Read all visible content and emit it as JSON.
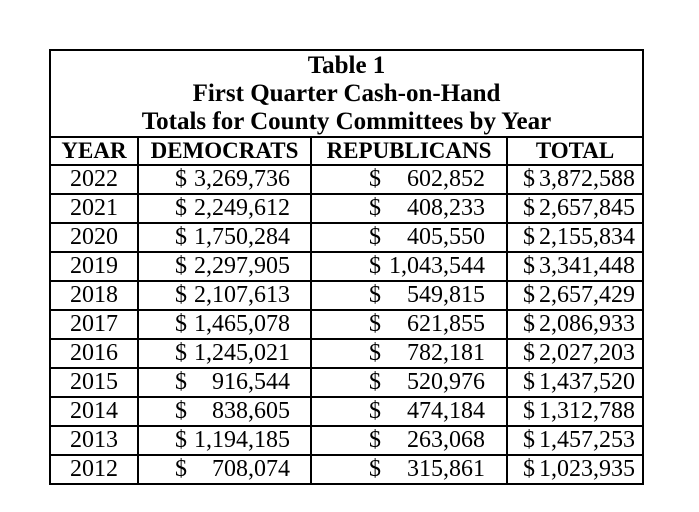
{
  "table": {
    "title_lines": [
      "Table 1",
      "First Quarter Cash-on-Hand",
      "Totals for County Committees by Year"
    ],
    "columns": [
      "YEAR",
      "DEMOCRATS",
      "REPUBLICANS",
      "TOTAL"
    ],
    "currency_symbol": "$",
    "rows": [
      {
        "year": "2022",
        "democrats": "3,269,736",
        "republicans": "602,852",
        "total": "3,872,588"
      },
      {
        "year": "2021",
        "democrats": "2,249,612",
        "republicans": "408,233",
        "total": "2,657,845"
      },
      {
        "year": "2020",
        "democrats": "1,750,284",
        "republicans": "405,550",
        "total": "2,155,834"
      },
      {
        "year": "2019",
        "democrats": "2,297,905",
        "republicans": "1,043,544",
        "total": "3,341,448"
      },
      {
        "year": "2018",
        "democrats": "2,107,613",
        "republicans": "549,815",
        "total": "2,657,429"
      },
      {
        "year": "2017",
        "democrats": "1,465,078",
        "republicans": "621,855",
        "total": "2,086,933"
      },
      {
        "year": "2016",
        "democrats": "1,245,021",
        "republicans": "782,181",
        "total": "2,027,203"
      },
      {
        "year": "2015",
        "democrats": "916,544",
        "republicans": "520,976",
        "total": "1,437,520"
      },
      {
        "year": "2014",
        "democrats": "838,605",
        "republicans": "474,184",
        "total": "1,312,788"
      },
      {
        "year": "2013",
        "democrats": "1,194,185",
        "republicans": "263,068",
        "total": "1,457,253"
      },
      {
        "year": "2012",
        "democrats": "708,074",
        "republicans": "315,861",
        "total": "1,023,935"
      }
    ],
    "colors": {
      "text": "#000000",
      "border": "#000000",
      "background": "#ffffff"
    }
  }
}
